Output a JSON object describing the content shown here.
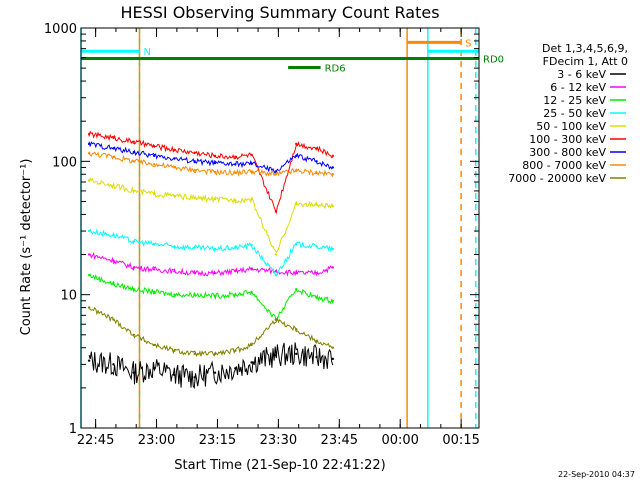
{
  "chart_data": {
    "type": "line",
    "title": "HESSI Observing Summary Count Rates",
    "xlabel": "Start Time (21-Sep-10 22:41:22)",
    "ylabel": "Count Rate (s⁻¹ detector⁻¹)",
    "x_unit": "minutes since 22:41:22",
    "xlim": [
      0,
      98
    ],
    "ylim": [
      1,
      1000
    ],
    "yscale": "log",
    "grid": false,
    "x_ticks": [
      {
        "x": 3.6,
        "label": "22:45"
      },
      {
        "x": 18.6,
        "label": "23:00"
      },
      {
        "x": 33.6,
        "label": "23:15"
      },
      {
        "x": 48.6,
        "label": "23:30"
      },
      {
        "x": 63.6,
        "label": "23:45"
      },
      {
        "x": 78.6,
        "label": "00:00"
      },
      {
        "x": 93.6,
        "label": "00:15"
      }
    ],
    "y_ticks": [
      {
        "y": 1,
        "label": "1"
      },
      {
        "y": 10,
        "label": "10"
      },
      {
        "y": 100,
        "label": "100"
      },
      {
        "y": 1000,
        "label": "1000"
      }
    ],
    "legend": {
      "placement": "right",
      "header": [
        "Det 1,3,4,5,6,9,",
        "FDecim 1, Att 0"
      ]
    },
    "series": [
      {
        "name": "3 - 6 keV",
        "color": "#000000",
        "values": [
          3.2,
          3.0,
          2.6,
          2.8,
          2.5,
          2.4,
          2.6,
          2.8,
          3.1,
          3.5,
          3.6,
          3.4,
          3.3
        ]
      },
      {
        "name": "6 - 12 keV",
        "color": "#ff00ff",
        "values": [
          20,
          18,
          16,
          15.5,
          15,
          14.5,
          14.5,
          15,
          15.5,
          15,
          14.5,
          14.5,
          16
        ]
      },
      {
        "name": "12 - 25 keV",
        "color": "#00ee00",
        "values": [
          14,
          12,
          11,
          10.5,
          10,
          10,
          9.8,
          10,
          10.5,
          6.5,
          11,
          9.5,
          9
        ]
      },
      {
        "name": "25 - 50 keV",
        "color": "#00ffff",
        "values": [
          30,
          28,
          25,
          24,
          23,
          22.5,
          22,
          22.5,
          23.5,
          14,
          24,
          23,
          22
        ]
      },
      {
        "name": "50 - 100 keV",
        "color": "#dddd00",
        "values": [
          72,
          66,
          60,
          57,
          55,
          53,
          52,
          51,
          52,
          20,
          48,
          47,
          46
        ]
      },
      {
        "name": "100 - 300 keV",
        "color": "#ff0000",
        "values": [
          160,
          150,
          140,
          130,
          122,
          116,
          110,
          108,
          112,
          42,
          135,
          125,
          110
        ]
      },
      {
        "name": "300 - 800 keV",
        "color": "#0000ff",
        "values": [
          135,
          125,
          117,
          110,
          105,
          100,
          97,
          95,
          96,
          84,
          110,
          100,
          90
        ]
      },
      {
        "name": "800 - 7000 keV",
        "color": "#ff8800",
        "values": [
          115,
          108,
          100,
          95,
          90,
          86,
          83,
          82,
          84,
          80,
          85,
          82,
          80
        ]
      },
      {
        "name": "7000 - 20000 keV",
        "color": "#808000",
        "values": [
          8,
          6.5,
          5,
          4.2,
          3.8,
          3.6,
          3.6,
          3.8,
          4.2,
          6.5,
          5.5,
          4.5,
          4
        ]
      }
    ],
    "series_x": [
      2,
      8,
      13,
      18,
      23,
      28,
      33,
      38,
      42,
      48,
      53,
      58,
      62
    ],
    "observing_bars": [
      {
        "label": "N",
        "color": "#00ffff",
        "x0": 0,
        "x1": 14.4,
        "y": 670
      },
      {
        "label": "",
        "color": "#00ffff",
        "x0": 85.4,
        "x1": 98,
        "y": 670
      },
      {
        "label": "S",
        "color": "#ff8800",
        "x0": 80.3,
        "x1": 93.6,
        "y": 780
      },
      {
        "label": "RD0",
        "color": "#008000",
        "x0": 0,
        "x1": 98,
        "y": 590
      },
      {
        "label": "RD6",
        "color": "#008000",
        "x0": 51,
        "x1": 59,
        "y": 505
      }
    ],
    "vertical_lines": [
      {
        "x": 0,
        "color": "#00ffff",
        "style": "solid"
      },
      {
        "x": 14.4,
        "color": "#00ffff",
        "style": "dashed"
      },
      {
        "x": 85.4,
        "color": "#00ffff",
        "style": "solid"
      },
      {
        "x": 97.2,
        "color": "#00ffff",
        "style": "dashed"
      },
      {
        "x": 14.4,
        "color": "#ff8800",
        "style": "solid"
      },
      {
        "x": 80.3,
        "color": "#ff8800",
        "style": "solid"
      },
      {
        "x": 93.6,
        "color": "#ff8800",
        "style": "dashed"
      }
    ],
    "footer_timestamp": "22-Sep-2010 04:37"
  }
}
